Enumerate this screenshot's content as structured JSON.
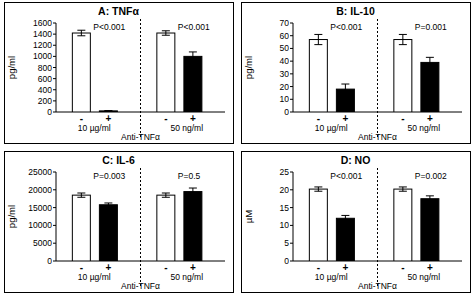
{
  "chart_data": [
    {
      "type": "bar",
      "title": "A: TNFα",
      "y_label": "pg/ml",
      "x_label": "Anti-TNFα",
      "categories": [
        "-",
        "+",
        "-",
        "+"
      ],
      "values": [
        1420,
        20,
        1420,
        1000
      ],
      "errors": [
        50,
        5,
        40,
        80
      ],
      "colors": [
        "#ffffff",
        "#000000",
        "#ffffff",
        "#000000"
      ],
      "group_labels": [
        "10 µg/ml",
        "50 ng/ml"
      ],
      "annotations": [
        "P<0.001",
        "P<0.001"
      ],
      "ylim": [
        0,
        1600
      ],
      "yticks": [
        0,
        200,
        400,
        600,
        800,
        1000,
        1200,
        1400,
        1600
      ]
    },
    {
      "type": "bar",
      "title": "B: IL-10",
      "y_label": "pg/ml",
      "x_label": "Anti-TNFα",
      "categories": [
        "-",
        "+",
        "-",
        "+"
      ],
      "values": [
        57,
        18,
        57,
        39
      ],
      "errors": [
        4,
        4,
        4,
        4
      ],
      "colors": [
        "#ffffff",
        "#000000",
        "#ffffff",
        "#000000"
      ],
      "group_labels": [
        "10 µg/ml",
        "50 ng/ml"
      ],
      "annotations": [
        "P<0.001",
        "P=0.001"
      ],
      "ylim": [
        0,
        70
      ],
      "yticks": [
        0,
        10,
        20,
        30,
        40,
        50,
        60,
        70
      ]
    },
    {
      "type": "bar",
      "title": "C: IL-6",
      "y_label": "pg/ml",
      "x_label": "Anti-TNFα",
      "categories": [
        "-",
        "+",
        "-",
        "+"
      ],
      "values": [
        18500,
        15800,
        18500,
        19500
      ],
      "errors": [
        600,
        500,
        600,
        1000
      ],
      "colors": [
        "#ffffff",
        "#000000",
        "#ffffff",
        "#000000"
      ],
      "group_labels": [
        "10 µg/ml",
        "50 ng/ml"
      ],
      "annotations": [
        "P=0.003",
        "P=0.5"
      ],
      "ylim": [
        0,
        25000
      ],
      "yticks": [
        0,
        5000,
        10000,
        15000,
        20000,
        25000
      ]
    },
    {
      "type": "bar",
      "title": "D: NO",
      "y_label": "µM",
      "x_label": "Anti-TNFα",
      "categories": [
        "-",
        "+",
        "-",
        "+"
      ],
      "values": [
        20.2,
        12,
        20.2,
        17.5
      ],
      "errors": [
        0.6,
        0.8,
        0.6,
        0.8
      ],
      "colors": [
        "#ffffff",
        "#000000",
        "#ffffff",
        "#000000"
      ],
      "group_labels": [
        "10 µg/ml",
        "50 ng/ml"
      ],
      "annotations": [
        "P<0.001",
        "P=0.002"
      ],
      "ylim": [
        0,
        25
      ],
      "yticks": [
        0,
        5,
        10,
        15,
        20,
        25
      ]
    }
  ]
}
